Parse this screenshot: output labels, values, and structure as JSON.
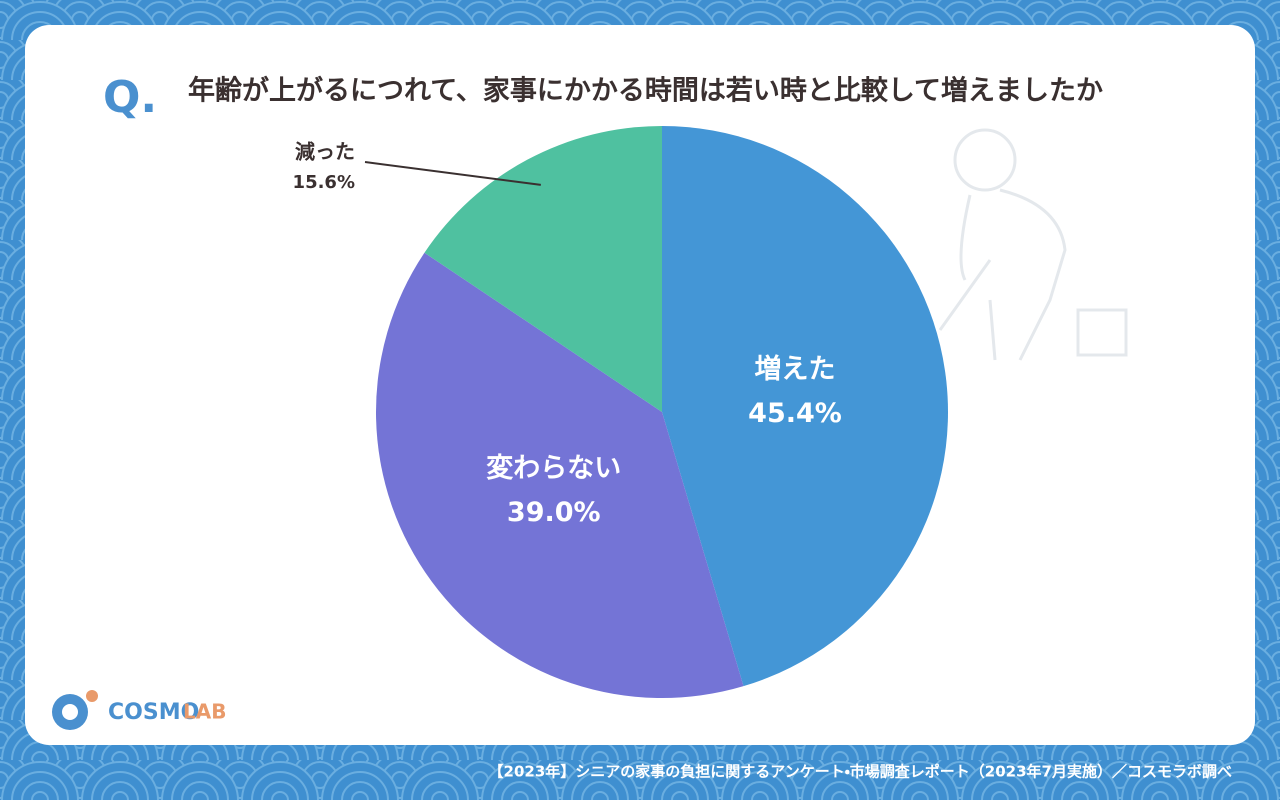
{
  "chart_data": {
    "type": "pie",
    "q_label": "Q.",
    "title": "年齢が上がるにつれて、家事にかかる時間は若い時と比較して増えましたか",
    "categories": [
      "増えた",
      "変わらない",
      "減った"
    ],
    "values": [
      45.4,
      39.0,
      15.6
    ],
    "value_labels": [
      "45.4%",
      "39.0%",
      "15.6%"
    ],
    "colors": [
      "#4496d6",
      "#7474d6",
      "#4fc1a0"
    ]
  },
  "logo": {
    "name": "COSMO",
    "suffix": "LAB"
  },
  "source": "【2023年】シニアの家事の負担に関するアンケート・市場調査レポート（2023年7月実施）／コスモラボ調べ"
}
